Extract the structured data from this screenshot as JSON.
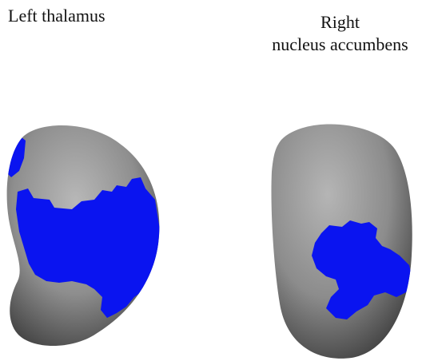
{
  "panels": [
    {
      "title_lines": [
        "Left thalamus"
      ]
    },
    {
      "title_lines": [
        "Right",
        "nucleus accumbens"
      ]
    }
  ],
  "colors": {
    "background": "#ffffff",
    "surface_light": "#b3b3b3",
    "surface_mid": "#8c8c8c",
    "surface_dark": "#3f3f3f",
    "highlight": "#0a14f0"
  }
}
